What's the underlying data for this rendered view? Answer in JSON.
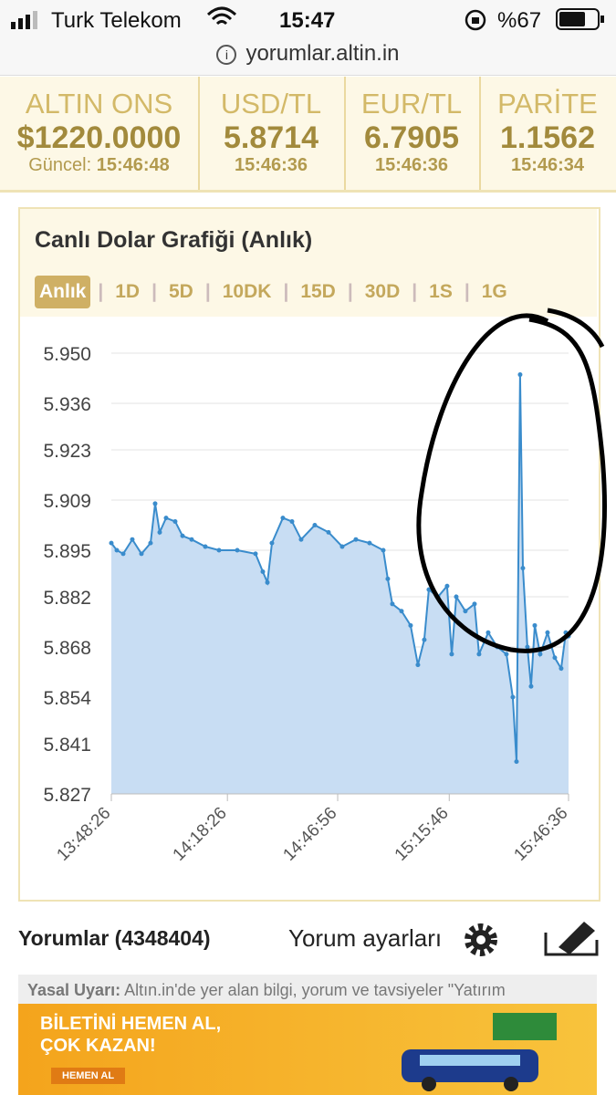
{
  "status_bar": {
    "carrier": "Turk Telekom",
    "time": "15:47",
    "battery": "%67"
  },
  "address_bar": {
    "url": "yorumlar.altin.in"
  },
  "tickers": [
    {
      "name": "ALTIN ONS",
      "value": "$1220.0000",
      "prefix": "Güncel:",
      "time": "15:46:48"
    },
    {
      "name": "USD/TL",
      "value": "5.8714",
      "time": "15:46:36"
    },
    {
      "name": "EUR/TL",
      "value": "6.7905",
      "time": "15:46:36"
    },
    {
      "name": "PARİTE",
      "value": "1.1562",
      "time": "15:46:34"
    }
  ],
  "chart_panel": {
    "title": "Canlı Dolar Grafiği (Anlık)",
    "tabs": [
      "Anlık",
      "1D",
      "5D",
      "10DK",
      "15D",
      "30D",
      "1S",
      "1G"
    ],
    "active_tab": 0
  },
  "chart": {
    "type": "line",
    "color": "#3a8ccc",
    "grid": true,
    "x": [
      "13:48:26",
      "13:49:51",
      "13:51:30",
      "13:53:51",
      "13:56:13",
      "13:58:34",
      "13:59:45",
      "14:00:56",
      "14:02:35",
      "14:04:56",
      "14:06:50",
      "14:09:11",
      "14:12:43",
      "14:16:16",
      "14:20:59",
      "14:25:42",
      "14:27:35",
      "14:28:46",
      "14:29:56",
      "14:32:46",
      "14:35:08",
      "14:37:29",
      "14:41:01",
      "14:44:34",
      "14:48:06",
      "14:51:38",
      "14:55:10",
      "14:58:43",
      "14:59:53",
      "15:01:04",
      "15:03:26",
      "15:05:47",
      "15:07:40",
      "15:09:19",
      "15:10:30",
      "15:12:52",
      "15:15:13",
      "15:16:24",
      "15:17:35",
      "15:19:56",
      "15:22:18",
      "15:23:28",
      "15:25:50",
      "15:28:11",
      "15:30:33",
      "15:32:12",
      "15:33:09",
      "15:34:05",
      "15:34:48",
      "15:35:58",
      "15:36:55",
      "15:37:52",
      "15:39:16",
      "15:41:10",
      "15:43:03",
      "15:44:42",
      "15:45:53",
      "15:46:36"
    ],
    "values": [
      5.897,
      5.895,
      5.894,
      5.898,
      5.894,
      5.897,
      5.908,
      5.9,
      5.904,
      5.903,
      5.899,
      5.898,
      5.896,
      5.895,
      5.895,
      5.894,
      5.889,
      5.886,
      5.897,
      5.904,
      5.903,
      5.898,
      5.902,
      5.9,
      5.896,
      5.898,
      5.897,
      5.895,
      5.887,
      5.88,
      5.878,
      5.874,
      5.863,
      5.87,
      5.884,
      5.882,
      5.885,
      5.866,
      5.882,
      5.878,
      5.88,
      5.866,
      5.872,
      5.868,
      5.866,
      5.854,
      5.836,
      5.944,
      5.89,
      5.868,
      5.857,
      5.874,
      5.866,
      5.872,
      5.865,
      5.862,
      5.872,
      5.871
    ],
    "xlim": [
      "13:48:26",
      "15:46:36"
    ],
    "xticks": [
      "13:48:26",
      "14:18:26",
      "14:46:56",
      "15:15:46",
      "15:46:36"
    ],
    "ylim": [
      5.827,
      5.95
    ],
    "yticks": [
      {
        "value": 5.95,
        "label": "5.950"
      },
      5.936,
      5.923,
      5.909,
      5.895,
      5.882,
      5.868,
      5.854,
      5.841,
      5.827
    ]
  },
  "comments": {
    "title": "Yorumlar (4348404)",
    "settings": "Yorum ayarları"
  },
  "disclaimer": {
    "label": "Yasal Uyarı:",
    "text": "Altın.in'de yer alan bilgi, yorum ve tavsiyeler \"Yatırım"
  },
  "ad": {
    "headline": [
      "BİLETİNİ HEMEN AL,",
      "ÇOK KAZAN!"
    ],
    "button": "HEMEN AL"
  }
}
